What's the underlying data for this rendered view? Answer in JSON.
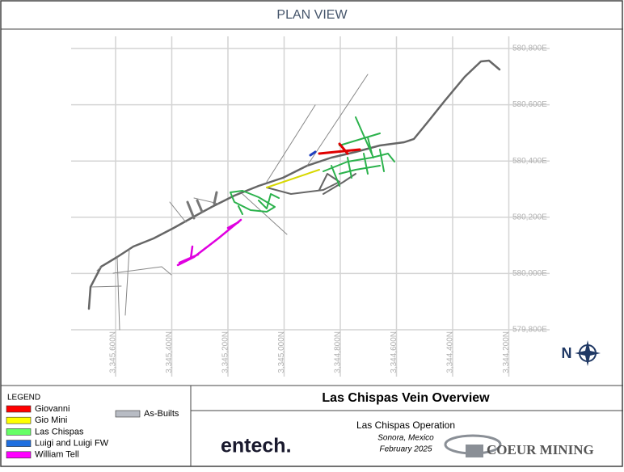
{
  "header": {
    "title": "PLAN VIEW"
  },
  "map": {
    "easting_labels": [
      "580,800E",
      "580,600E",
      "580,400E",
      "580,200E",
      "580,000E",
      "579,800E"
    ],
    "northing_labels": [
      "3,345,600N",
      "3,345,400N",
      "3,345,200N",
      "3,345,000N",
      "3,344,800N",
      "3,344,600N",
      "3,344,400N",
      "3,344,200N"
    ],
    "north_arrow": "N"
  },
  "legend": {
    "title": "LEGEND",
    "items": [
      {
        "label": "Giovanni",
        "color": "#ff0000"
      },
      {
        "label": "Gio Mini",
        "color": "#ffff00"
      },
      {
        "label": "Las Chispas",
        "color": "#66ff66"
      },
      {
        "label": "Luigi and Luigi FW",
        "color": "#1f6fe0"
      },
      {
        "label": "William Tell",
        "color": "#ff00ff"
      },
      {
        "label": "As-Builts",
        "color": "#b8bcc4"
      }
    ]
  },
  "title_block": {
    "title": "Las Chispas Vein Overview",
    "operation": "Las Chispas Operation",
    "location": "Sonora, Mexico",
    "date": "February 2025",
    "logo_left": "entech.",
    "logo_right": "COEUR MINING"
  }
}
